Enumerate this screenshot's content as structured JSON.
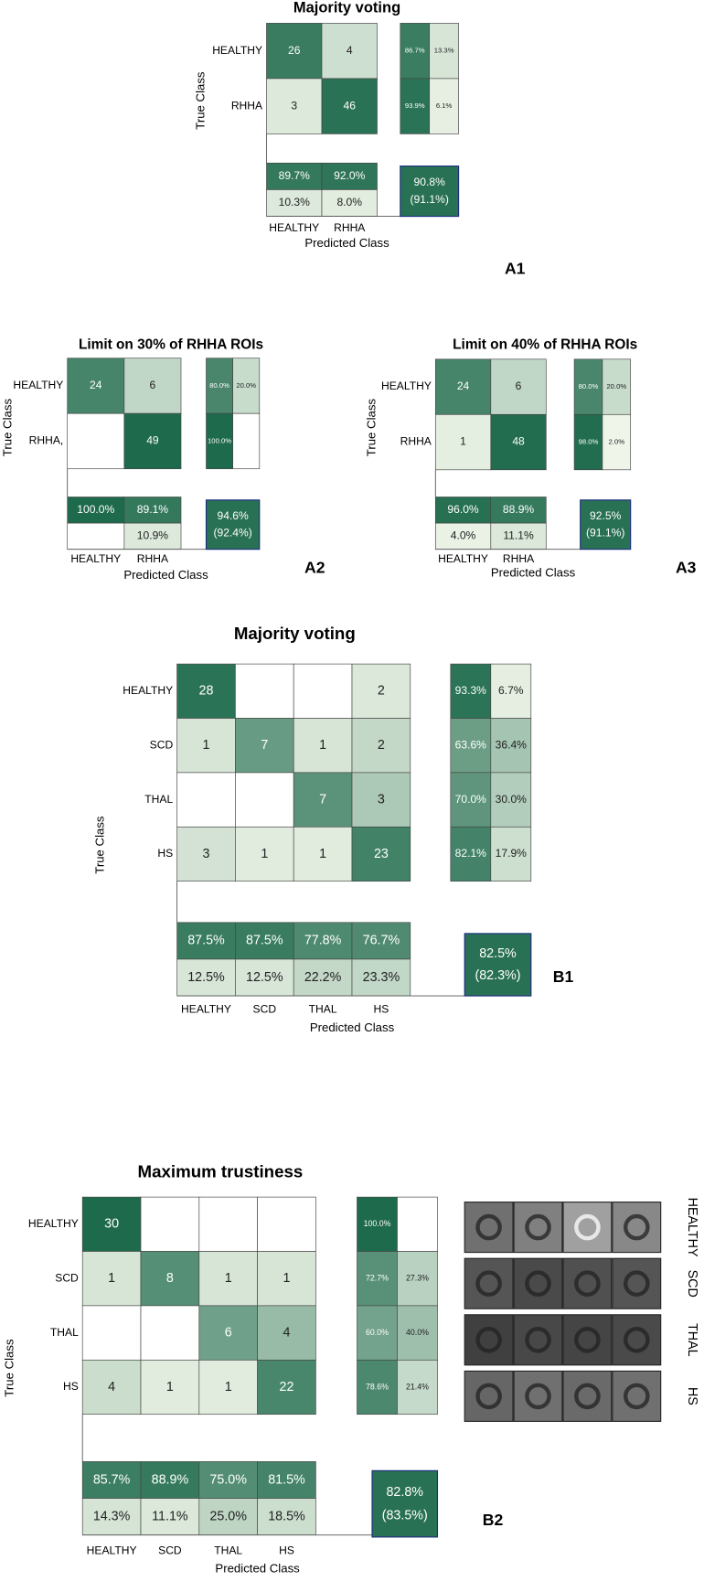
{
  "panels": [
    {
      "title": "Majority voting",
      "label": "A1",
      "classes": [
        "HEALTHY",
        "RHHA"
      ],
      "row_labels": [
        "HEALTHY",
        "RHHA"
      ],
      "matrix": [
        [
          26,
          4
        ],
        [
          3,
          46
        ]
      ],
      "row_pct": [
        [
          "86.7%",
          "13.3%"
        ],
        [
          "93.9%",
          "6.1%"
        ]
      ],
      "col_pct": [
        [
          "89.7%",
          "92.0%"
        ],
        [
          "10.3%",
          "8.0%"
        ]
      ],
      "overall": "90.8%",
      "overall_paren": "(91.1%)",
      "true_label": "True Class",
      "pred_label": "Predicted Class"
    },
    {
      "title": "Limit on 30% of RHHA ROIs",
      "label": "A2",
      "classes": [
        "HEALTHY",
        "RHHA"
      ],
      "row_labels": [
        "HEALTHY",
        "RHHA,"
      ],
      "matrix": [
        [
          24,
          6
        ],
        [
          null,
          49
        ]
      ],
      "row_pct": [
        [
          "80.0%",
          "20.0%"
        ],
        [
          "100.0%",
          null
        ]
      ],
      "col_pct": [
        [
          "100.0%",
          "89.1%"
        ],
        [
          null,
          "10.9%"
        ]
      ],
      "overall": "94.6%",
      "overall_paren": "(92.4%)",
      "true_label": "True Class",
      "pred_label": "Predicted Class"
    },
    {
      "title": "Limit on 40% of RHHA ROIs",
      "label": "A3",
      "classes": [
        "HEALTHY",
        "RHHA"
      ],
      "row_labels": [
        "HEALTHY",
        "RHHA"
      ],
      "matrix": [
        [
          24,
          6
        ],
        [
          1,
          48
        ]
      ],
      "row_pct": [
        [
          "80.0%",
          "20.0%"
        ],
        [
          "98.0%",
          "2.0%"
        ]
      ],
      "col_pct": [
        [
          "96.0%",
          "88.9%"
        ],
        [
          "4.0%",
          "11.1%"
        ]
      ],
      "overall": "92.5%",
      "overall_paren": "(91.1%)",
      "true_label": "True Class",
      "pred_label": "Predicted Class"
    },
    {
      "title": "Majority voting",
      "label": "B1",
      "classes": [
        "HEALTHY",
        "SCD",
        "THAL",
        "HS"
      ],
      "row_labels": [
        "HEALTHY",
        "SCD",
        "THAL",
        "HS"
      ],
      "matrix": [
        [
          28,
          null,
          null,
          2
        ],
        [
          1,
          7,
          1,
          2
        ],
        [
          null,
          null,
          7,
          3
        ],
        [
          3,
          1,
          1,
          23
        ]
      ],
      "row_pct": [
        [
          "93.3%",
          "6.7%"
        ],
        [
          "63.6%",
          "36.4%"
        ],
        [
          "70.0%",
          "30.0%"
        ],
        [
          "82.1%",
          "17.9%"
        ]
      ],
      "col_pct": [
        [
          "87.5%",
          "87.5%",
          "77.8%",
          "76.7%"
        ],
        [
          "12.5%",
          "12.5%",
          "22.2%",
          "23.3%"
        ]
      ],
      "overall": "82.5%",
      "overall_paren": "(82.3%)",
      "true_label": "True Class",
      "pred_label": "Predicted Class"
    },
    {
      "title": "Maximum trustiness",
      "label": "B2",
      "classes": [
        "HEALTHY",
        "SCD",
        "THAL",
        "HS"
      ],
      "row_labels": [
        "HEALTHY",
        "SCD",
        "THAL",
        "HS"
      ],
      "matrix": [
        [
          30,
          null,
          null,
          null
        ],
        [
          1,
          8,
          1,
          1
        ],
        [
          null,
          null,
          6,
          4
        ],
        [
          4,
          1,
          1,
          22
        ]
      ],
      "row_pct": [
        [
          "100.0%",
          null
        ],
        [
          "72.7%",
          "27.3%"
        ],
        [
          "60.0%",
          "40.0%"
        ],
        [
          "78.6%",
          "21.4%"
        ]
      ],
      "col_pct": [
        [
          "85.7%",
          "88.9%",
          "75.0%",
          "81.5%"
        ],
        [
          "14.3%",
          "11.1%",
          "25.0%",
          "18.5%"
        ]
      ],
      "overall": "82.8%",
      "overall_paren": "(83.5%)",
      "true_label": "True Class",
      "pred_label": "Predicted Class"
    }
  ]
}
